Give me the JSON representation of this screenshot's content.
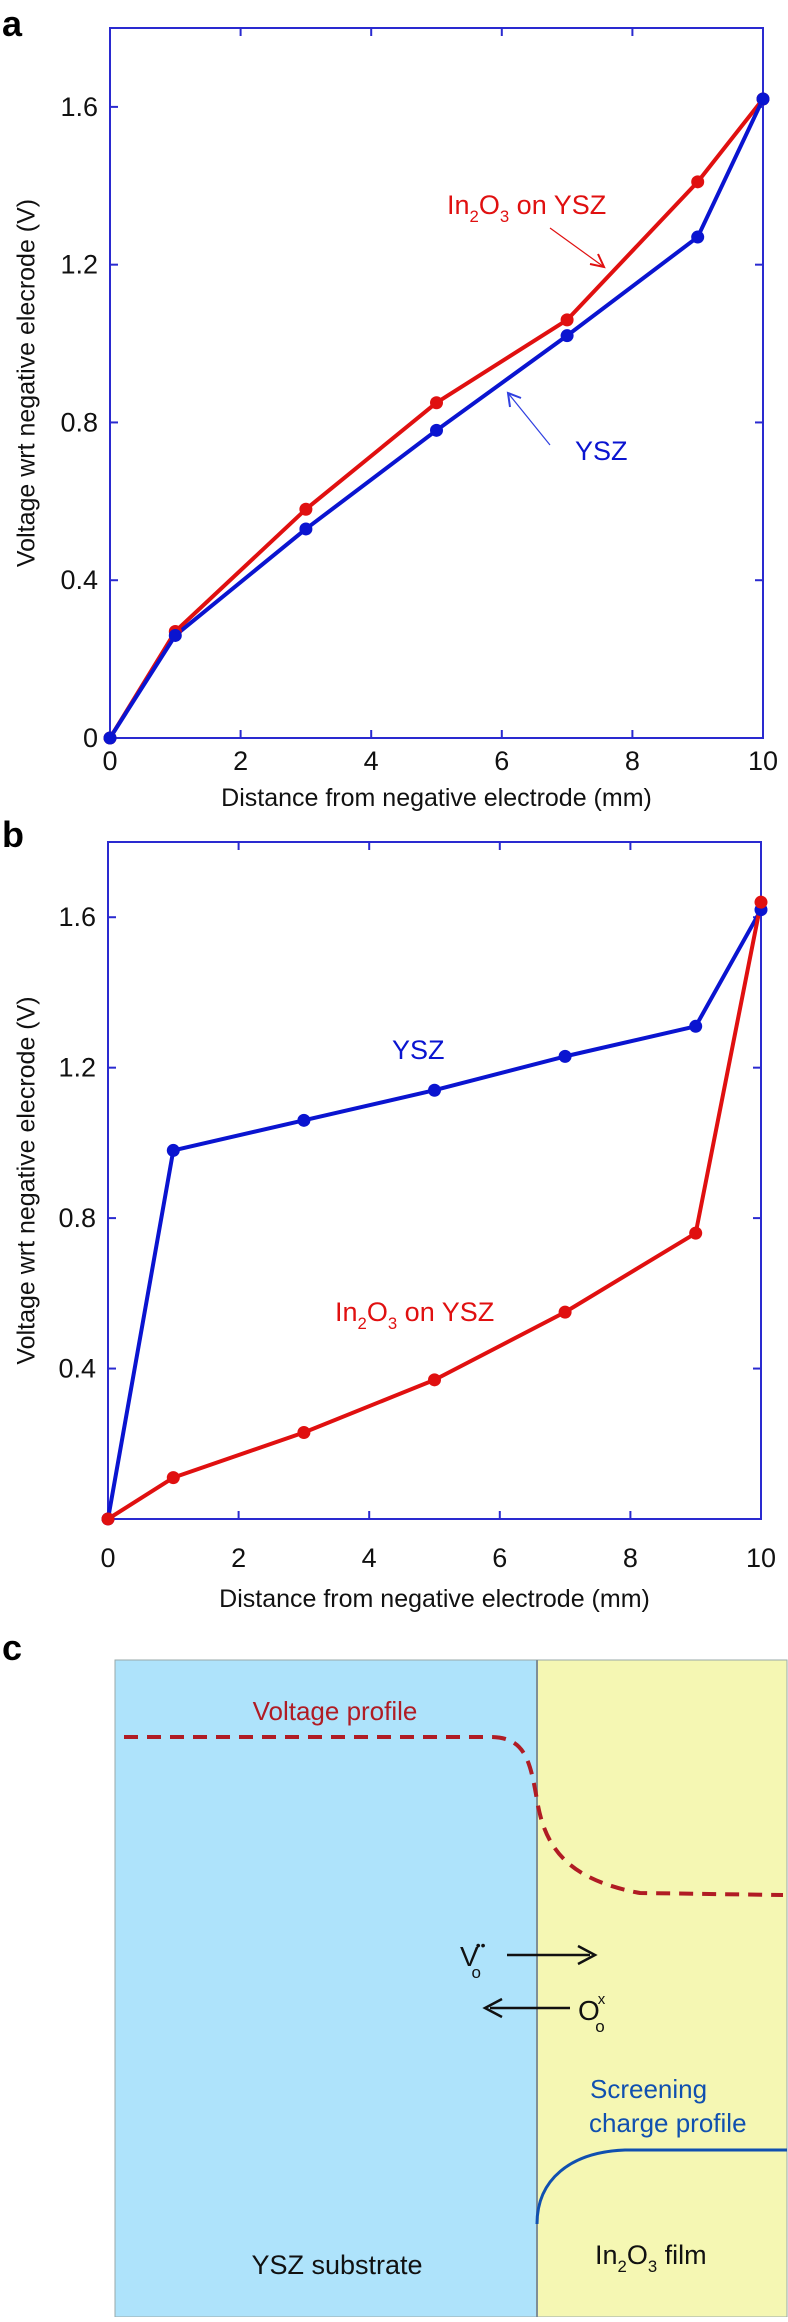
{
  "panels": {
    "a": "a",
    "b": "b",
    "c": "c"
  },
  "colors": {
    "ysz": "#0a14d0",
    "in2o3": "#e01010",
    "frame": "#2a2ad0",
    "substrate": "#aee3fb",
    "film": "#f5f7b3",
    "voltage": "#b01c24",
    "screening": "#1050b0"
  },
  "chart_data": [
    {
      "type": "line",
      "panel": "a",
      "xlabel": "Distance from negative electrode (mm)",
      "ylabel": "Voltage wrt negative elecrode (V)",
      "xlim": [
        0,
        10
      ],
      "ylim": [
        0,
        1.8
      ],
      "xticks": [
        "0",
        "2",
        "4",
        "6",
        "8",
        "10"
      ],
      "yticks": [
        "0",
        "0.4",
        "0.8",
        "1.2",
        "1.6"
      ],
      "x": [
        0,
        1,
        3,
        5,
        7,
        9,
        10
      ],
      "series": [
        {
          "name": "In2O3 on YSZ",
          "label_parts": [
            [
              "In",
              ""
            ],
            [
              "2",
              "sub"
            ],
            [
              "O",
              ""
            ],
            [
              "3",
              "sub"
            ],
            [
              " on YSZ",
              ""
            ]
          ],
          "color": "#e01010",
          "values": [
            0,
            0.27,
            0.58,
            0.85,
            1.06,
            1.41,
            1.62
          ]
        },
        {
          "name": "YSZ",
          "label_parts": [
            [
              "YSZ",
              ""
            ]
          ],
          "color": "#0a14d0",
          "values": [
            0,
            0.26,
            0.53,
            0.78,
            1.02,
            1.27,
            1.62
          ]
        }
      ]
    },
    {
      "type": "line",
      "panel": "b",
      "xlabel": "Distance from negative electrode (mm)",
      "ylabel": "Voltage wrt negative elecrode (V)",
      "xlim": [
        0,
        10
      ],
      "ylim": [
        0,
        1.8
      ],
      "xticks": [
        "0",
        "2",
        "4",
        "6",
        "8",
        "10"
      ],
      "yticks": [
        "",
        "0.4",
        "0.8",
        "1.2",
        "1.6"
      ],
      "x": [
        0,
        1,
        3,
        5,
        7,
        9,
        10
      ],
      "series": [
        {
          "name": "YSZ",
          "label_parts": [
            [
              "YSZ",
              ""
            ]
          ],
          "color": "#0a14d0",
          "values": [
            0,
            0.98,
            1.06,
            1.14,
            1.23,
            1.31,
            1.62
          ]
        },
        {
          "name": "In2O3 on YSZ",
          "label_parts": [
            [
              "In",
              ""
            ],
            [
              "2",
              "sub"
            ],
            [
              "O",
              ""
            ],
            [
              "3",
              "sub"
            ],
            [
              " on YSZ",
              ""
            ]
          ],
          "color": "#e01010",
          "values": [
            0,
            0.11,
            0.23,
            0.37,
            0.55,
            0.76,
            1.64
          ]
        }
      ]
    }
  ],
  "diagram": {
    "voltage_profile": "Voltage profile",
    "vacancy": {
      "base": "V",
      "sup": "••",
      "sub": "o"
    },
    "oxygen": {
      "base": "O",
      "sup": "x",
      "sub": "o"
    },
    "screening_line1": "Screening",
    "screening_line2": "charge profile",
    "substrate": "YSZ substrate",
    "film_parts": [
      [
        "In",
        ""
      ],
      [
        "2",
        "sub"
      ],
      [
        "O",
        ""
      ],
      [
        "3",
        "sub"
      ],
      [
        " film",
        ""
      ]
    ]
  }
}
